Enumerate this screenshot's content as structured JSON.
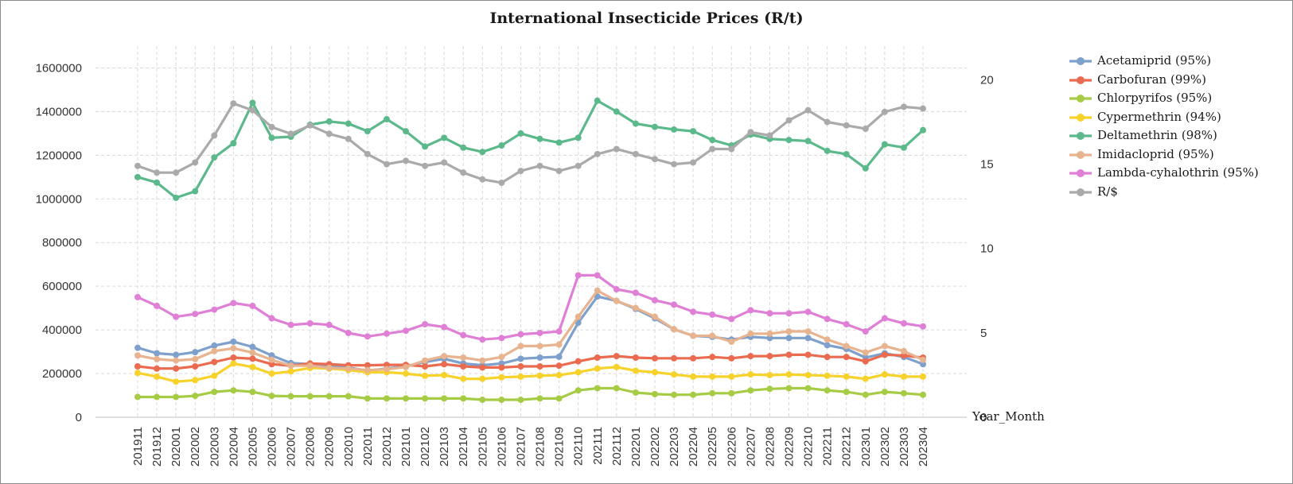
{
  "chart_data": {
    "type": "line",
    "title": "International Insecticide Prices (R/t)",
    "xlabel": "Year_Month",
    "ylabel": "",
    "ylim": [
      0,
      1700000
    ],
    "yticks": [
      "0",
      "200000",
      "400000",
      "600000",
      "800000",
      "1000000",
      "1200000",
      "1400000",
      "1600000"
    ],
    "y2lim": [
      0,
      22
    ],
    "y2ticks": [
      "0",
      "5",
      "10",
      "15",
      "20"
    ],
    "grid": true,
    "legend_position": "right",
    "categories": [
      "201911",
      "201912",
      "202001",
      "202002",
      "202003",
      "202004",
      "202005",
      "202006",
      "202007",
      "202008",
      "202009",
      "202010",
      "202011",
      "202012",
      "202101",
      "202102",
      "202103",
      "202104",
      "202105",
      "202106",
      "202107",
      "202108",
      "202109",
      "202110",
      "202111",
      "202112",
      "202201",
      "202202",
      "202203",
      "202204",
      "202205",
      "202206",
      "202207",
      "202208",
      "202209",
      "202210",
      "202211",
      "202212",
      "202301",
      "202302",
      "202303",
      "202304"
    ],
    "series": [
      {
        "name": "Acetamiprid (95%)",
        "axis": "left",
        "color": "#7da0cc",
        "values": [
          318000,
          293000,
          286000,
          298000,
          328000,
          346000,
          322000,
          283000,
          248000,
          243000,
          233000,
          228000,
          213000,
          223000,
          233000,
          253000,
          268000,
          246000,
          238000,
          246000,
          268000,
          273000,
          277000,
          433000,
          553000,
          533000,
          496000,
          453000,
          403000,
          373000,
          368000,
          356000,
          368000,
          363000,
          363000,
          363000,
          330000,
          313000,
          273000,
          293000,
          276000,
          243000
        ]
      },
      {
        "name": "Carbofuran (99%)",
        "axis": "left",
        "color": "#ea6b4f",
        "values": [
          233000,
          223000,
          223000,
          233000,
          253000,
          273000,
          268000,
          243000,
          236000,
          246000,
          243000,
          238000,
          238000,
          240000,
          240000,
          233000,
          243000,
          233000,
          228000,
          228000,
          233000,
          233000,
          236000,
          256000,
          273000,
          280000,
          273000,
          270000,
          270000,
          270000,
          276000,
          270000,
          280000,
          280000,
          286000,
          286000,
          276000,
          276000,
          256000,
          286000,
          283000,
          273000
        ]
      },
      {
        "name": "Chlorpyrifos (95%)",
        "axis": "left",
        "color": "#a6cb45",
        "values": [
          93000,
          93000,
          93000,
          98000,
          116000,
          123000,
          116000,
          98000,
          96000,
          96000,
          96000,
          96000,
          86000,
          86000,
          86000,
          86000,
          86000,
          86000,
          80000,
          80000,
          80000,
          86000,
          86000,
          123000,
          133000,
          133000,
          113000,
          106000,
          103000,
          103000,
          110000,
          110000,
          123000,
          130000,
          133000,
          133000,
          123000,
          116000,
          103000,
          116000,
          110000,
          103000
        ]
      },
      {
        "name": "Cypermethrin (94%)",
        "axis": "left",
        "color": "#f6d22a",
        "values": [
          203000,
          186000,
          163000,
          170000,
          190000,
          246000,
          230000,
          200000,
          210000,
          226000,
          223000,
          216000,
          206000,
          206000,
          200000,
          190000,
          193000,
          176000,
          176000,
          183000,
          186000,
          190000,
          193000,
          206000,
          223000,
          230000,
          213000,
          206000,
          196000,
          186000,
          186000,
          186000,
          196000,
          193000,
          196000,
          193000,
          190000,
          186000,
          176000,
          196000,
          186000,
          186000
        ]
      },
      {
        "name": "Deltamethrin (98%)",
        "axis": "left",
        "color": "#5bb98b",
        "values": [
          1100000,
          1075000,
          1005000,
          1035000,
          1190000,
          1255000,
          1440000,
          1280000,
          1285000,
          1340000,
          1355000,
          1345000,
          1310000,
          1365000,
          1310000,
          1240000,
          1280000,
          1235000,
          1215000,
          1245000,
          1300000,
          1275000,
          1258000,
          1280000,
          1450000,
          1400000,
          1345000,
          1330000,
          1318000,
          1310000,
          1270000,
          1245000,
          1295000,
          1275000,
          1270000,
          1265000,
          1220000,
          1205000,
          1140000,
          1250000,
          1235000,
          1315000
        ]
      },
      {
        "name": "Imidacloprid (95%)",
        "axis": "left",
        "color": "#e8b38f",
        "values": [
          283000,
          266000,
          260000,
          266000,
          303000,
          316000,
          296000,
          263000,
          236000,
          236000,
          226000,
          223000,
          216000,
          220000,
          230000,
          260000,
          280000,
          273000,
          260000,
          276000,
          326000,
          326000,
          333000,
          460000,
          580000,
          533000,
          500000,
          460000,
          403000,
          373000,
          373000,
          346000,
          383000,
          383000,
          393000,
          393000,
          356000,
          326000,
          296000,
          326000,
          303000,
          263000
        ]
      },
      {
        "name": "Lambda-cyhalothrin (95%)",
        "axis": "left",
        "color": "#df7fd5",
        "values": [
          550000,
          510000,
          460000,
          473000,
          493000,
          523000,
          510000,
          453000,
          423000,
          430000,
          423000,
          386000,
          370000,
          383000,
          396000,
          426000,
          413000,
          376000,
          356000,
          363000,
          380000,
          386000,
          393000,
          650000,
          650000,
          586000,
          570000,
          536000,
          516000,
          483000,
          470000,
          450000,
          490000,
          476000,
          476000,
          483000,
          450000,
          426000,
          393000,
          453000,
          430000,
          416000
        ]
      },
      {
        "name": "R/$",
        "axis": "right",
        "color": "#aaaaaa",
        "values": [
          14.9,
          14.5,
          14.5,
          15.1,
          16.7,
          18.6,
          18.2,
          17.2,
          16.8,
          17.3,
          16.8,
          16.5,
          15.6,
          15.0,
          15.2,
          14.9,
          15.1,
          14.5,
          14.1,
          13.9,
          14.6,
          14.9,
          14.6,
          14.9,
          15.6,
          15.9,
          15.6,
          15.3,
          15.0,
          15.1,
          15.9,
          15.9,
          16.9,
          16.7,
          17.6,
          18.2,
          17.5,
          17.3,
          17.1,
          18.1,
          18.4,
          18.3
        ]
      }
    ]
  }
}
